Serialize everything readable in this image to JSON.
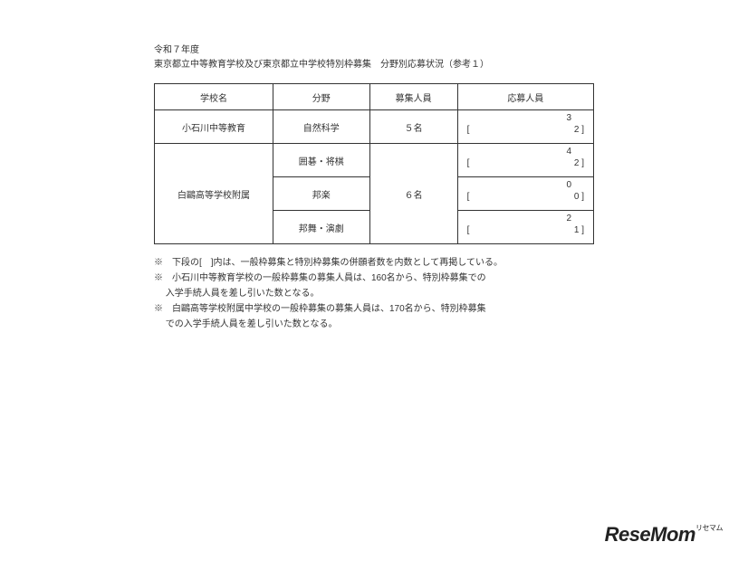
{
  "title": {
    "line1": "令和７年度",
    "line2": "東京都立中等教育学校及び東京都立中学校特別枠募集　分野別応募状況（参考１）"
  },
  "headers": {
    "school": "学校名",
    "field": "分野",
    "recruit": "募集人員",
    "applicants": "応募人員"
  },
  "rows": [
    {
      "school": "小石川中等教育",
      "field": "自然科学",
      "recruit": "５名",
      "app_top": "3",
      "app_bot": "2"
    },
    {
      "school": "白鷗高等学校附属",
      "field": "囲碁・将棋",
      "recruit": "６名",
      "app_top": "4",
      "app_bot": "2"
    },
    {
      "field": "邦楽",
      "app_top": "0",
      "app_bot": "0"
    },
    {
      "field": "邦舞・演劇",
      "app_top": "2",
      "app_bot": "1"
    }
  ],
  "bracket_open": "[",
  "bracket_close": "]",
  "notes": [
    "※　下段の[　]内は、一般枠募集と特別枠募集の併願者数を内数として再掲している。",
    "※　小石川中等教育学校の一般枠募集の募集人員は、160名から、特別枠募集での",
    "　 入学手続人員を差し引いた数となる。",
    "※　白鷗高等学校附属中学校の一般枠募集の募集人員は、170名から、特別枠募集",
    "　 での入学手続人員を差し引いた数となる。"
  ],
  "watermark": {
    "main": "ReseMom",
    "tail": "リセマム"
  }
}
